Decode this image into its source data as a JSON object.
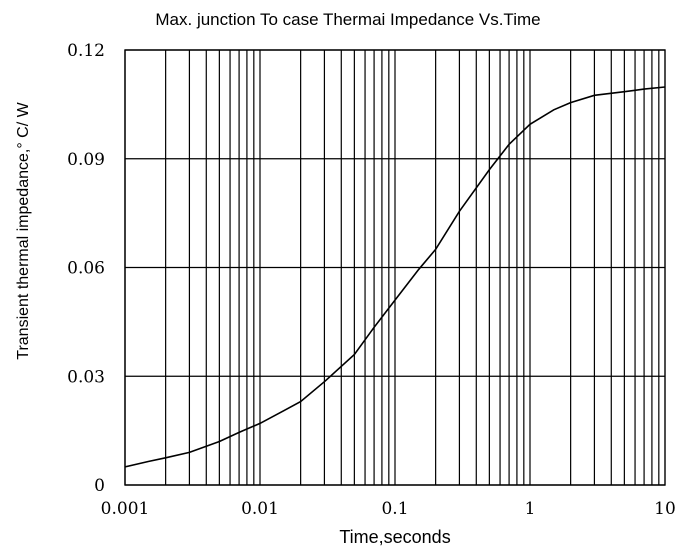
{
  "chart_data": {
    "type": "line",
    "title": "Max. junction To case Thermai Impedance Vs.Time",
    "xlabel": "Time,seconds",
    "ylabel": "Transient thermal impedance,° C/ W",
    "x_scale": "log",
    "xlim": [
      0.001,
      10
    ],
    "ylim": [
      0,
      0.12
    ],
    "x_tick_labels": [
      "0.001",
      "0.01",
      "0.1",
      "1",
      "10"
    ],
    "x_tick_values": [
      0.001,
      0.01,
      0.1,
      1,
      10
    ],
    "y_tick_labels": [
      "0",
      "0.03",
      "0.06",
      "0.09",
      "0.12"
    ],
    "y_tick_values": [
      0,
      0.03,
      0.06,
      0.09,
      0.12
    ],
    "grid": true,
    "line_color": "#000000",
    "series": [
      {
        "x": [
          0.001,
          0.0015,
          0.002,
          0.003,
          0.005,
          0.007,
          0.01,
          0.015,
          0.02,
          0.03,
          0.05,
          0.07,
          0.1,
          0.15,
          0.2,
          0.3,
          0.5,
          0.7,
          1,
          1.5,
          2,
          3,
          5,
          7,
          10
        ],
        "y": [
          0.005,
          0.0065,
          0.0075,
          0.009,
          0.012,
          0.0145,
          0.017,
          0.0205,
          0.023,
          0.0285,
          0.036,
          0.0435,
          0.051,
          0.0595,
          0.065,
          0.0755,
          0.087,
          0.094,
          0.0995,
          0.1035,
          0.1055,
          0.1075,
          0.1085,
          0.1092,
          0.1098
        ]
      }
    ]
  }
}
